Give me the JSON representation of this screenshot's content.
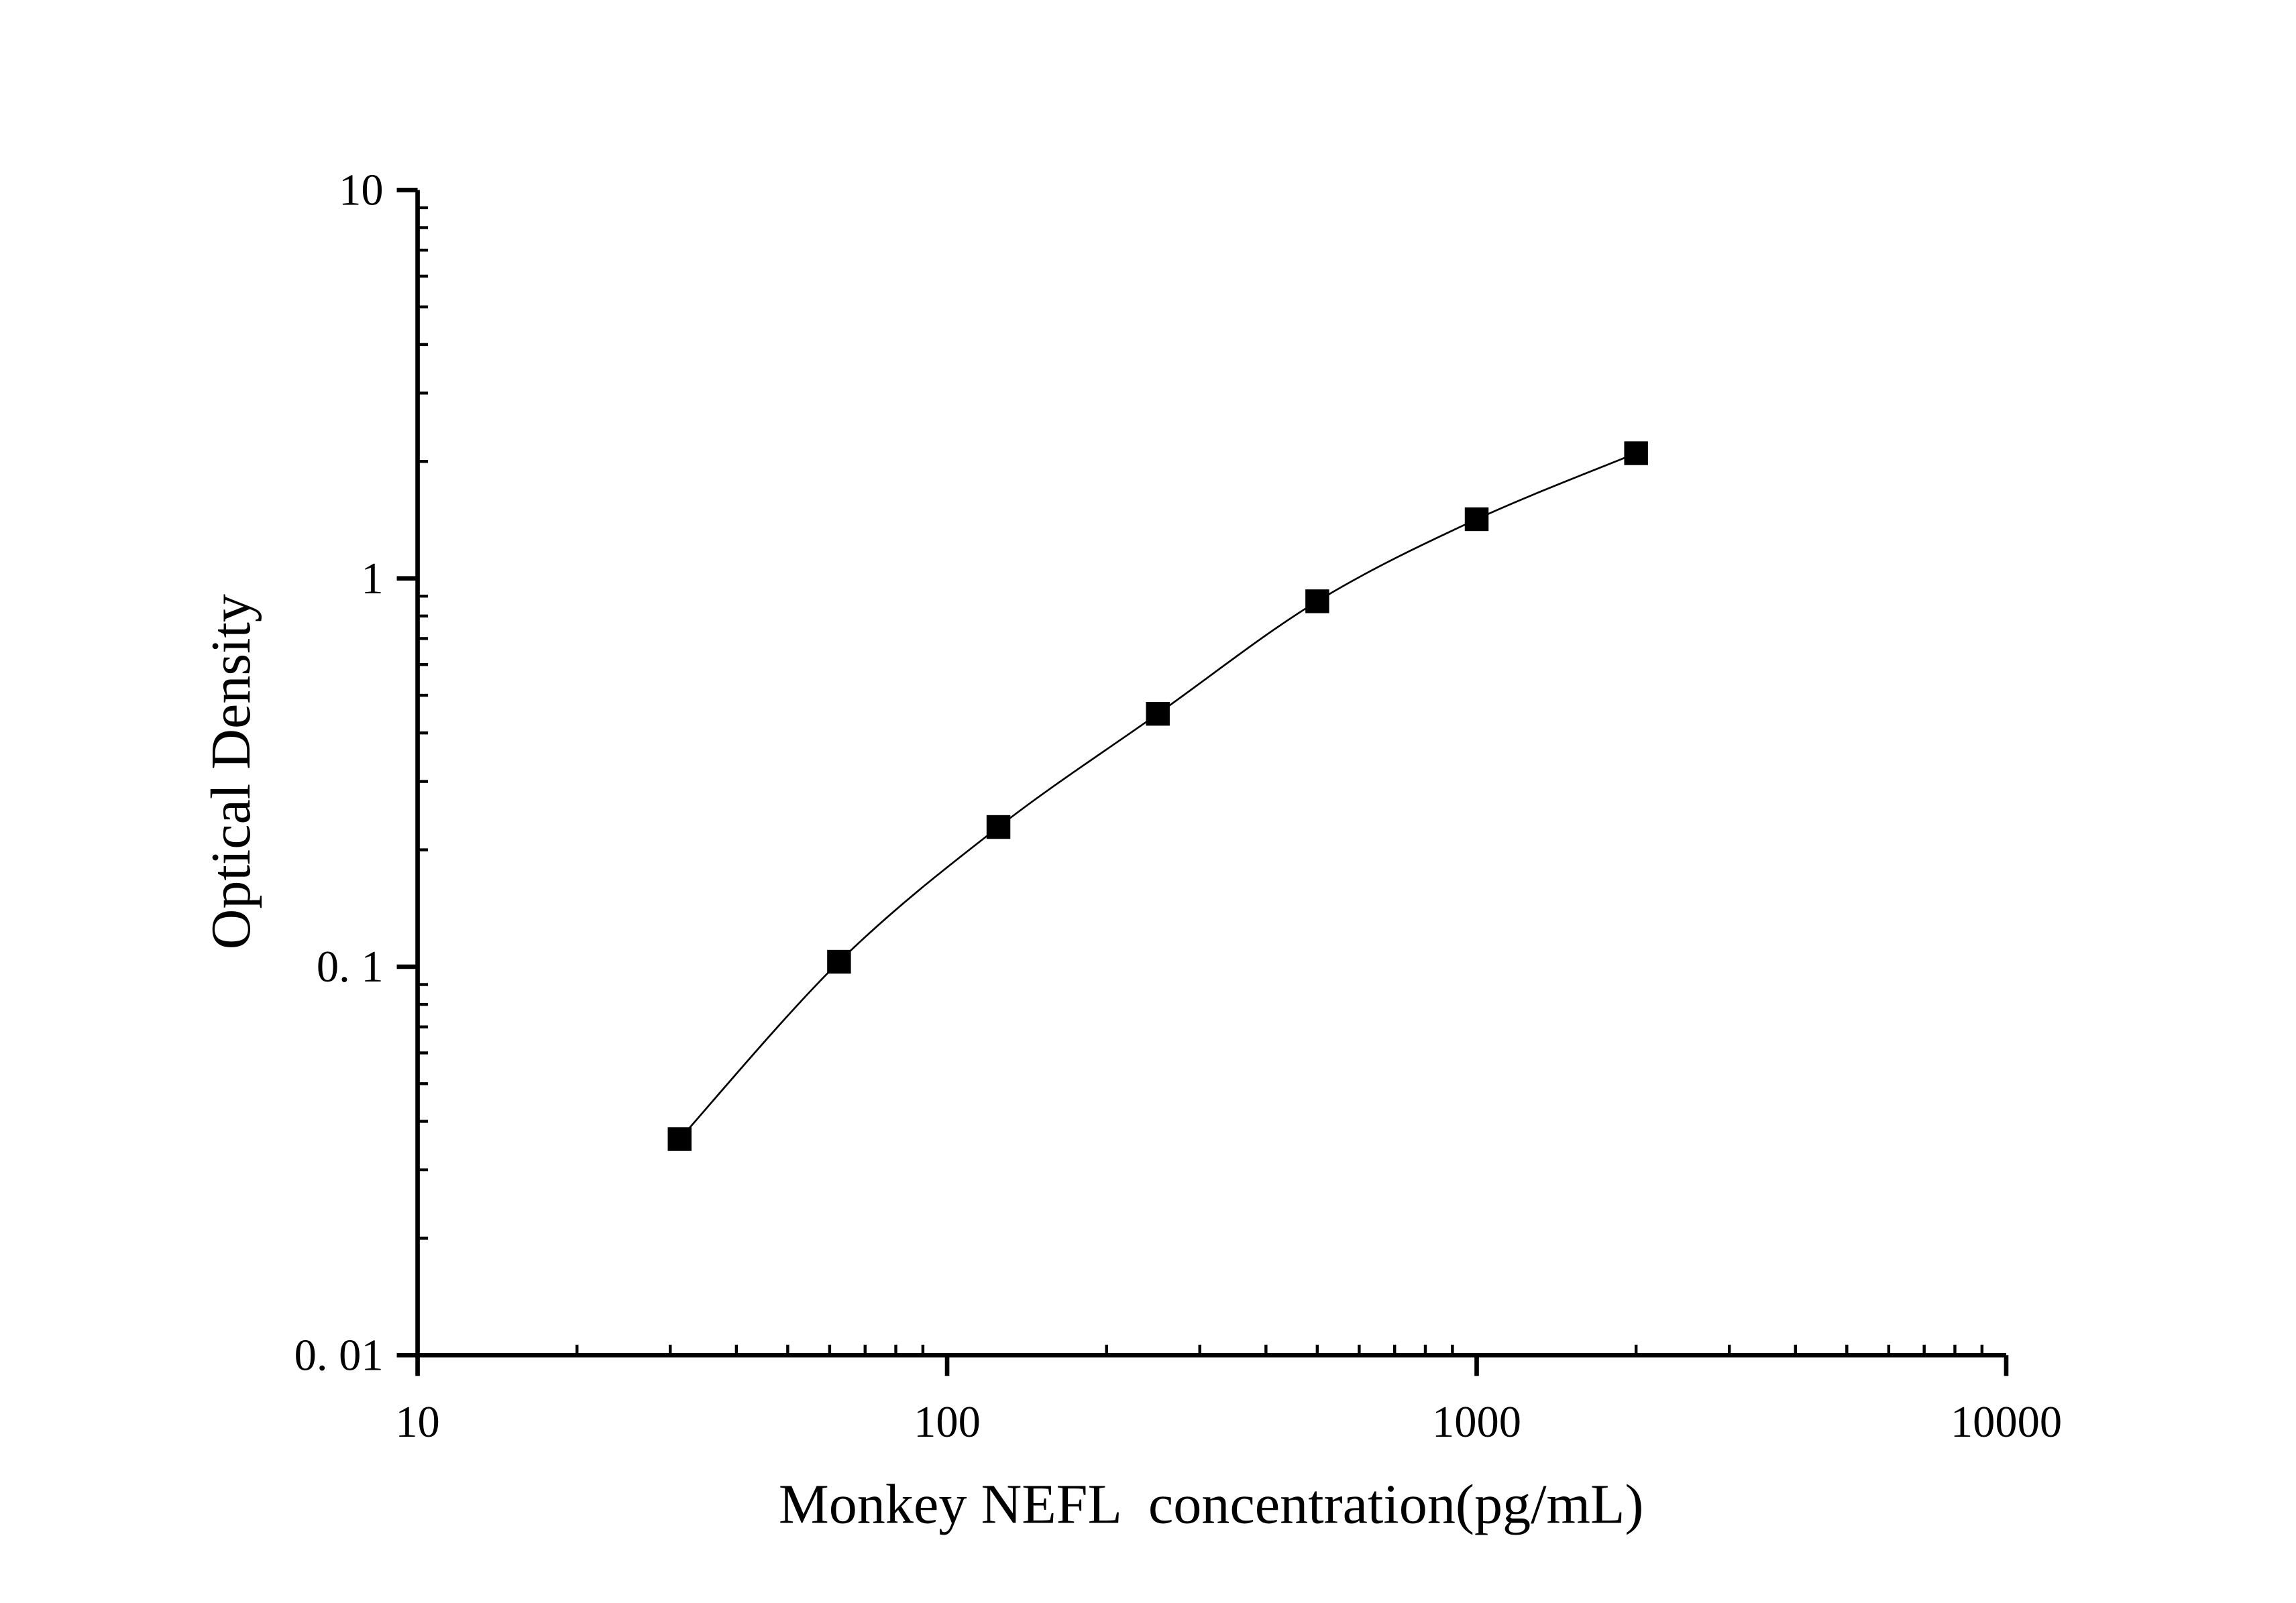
{
  "chart_data": {
    "type": "scatter",
    "x_label": "Monkey NEFL  concentration(pg/mL)",
    "y_label": "Optical Density",
    "x_scale": "log",
    "y_scale": "log",
    "xlim": [
      10,
      10000
    ],
    "ylim": [
      0.01,
      10
    ],
    "xticks": [
      10,
      100,
      1000,
      10000
    ],
    "yticks": [
      {
        "value": 0.01,
        "label": "0. 01"
      },
      {
        "value": 0.1,
        "label": "0. 1"
      },
      1,
      10
    ],
    "series": [
      {
        "color": "#000000",
        "x": [
          31.25,
          62.5,
          125,
          250,
          500,
          1000,
          2000
        ],
        "values": [
          0.036,
          0.103,
          0.229,
          0.448,
          0.873,
          1.42,
          2.1
        ]
      }
    ]
  }
}
